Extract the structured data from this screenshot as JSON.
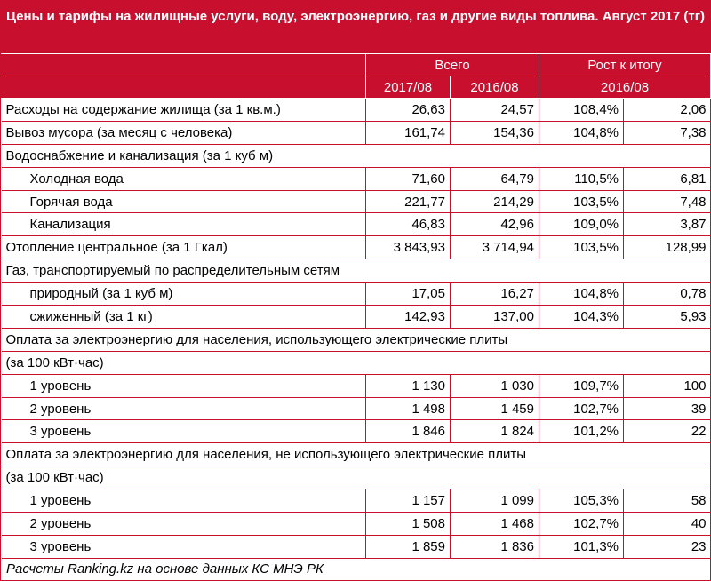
{
  "header": {
    "title": "Цены и тарифы на жилищные услуги, воду, электроэнергию, газ и другие виды топлива. Август 2017 (тг)"
  },
  "table": {
    "group_headers": [
      "Всего",
      "Рост к итогу"
    ],
    "column_headers": [
      "2017/08",
      "2016/08",
      "2016/08"
    ],
    "rows": [
      {
        "cells": [
          "Расходы на содержание жилища (за 1 кв.м.)",
          "26,63",
          "24,57",
          "108,4%",
          "2,06"
        ]
      },
      {
        "cells": [
          "Вывоз мусора (за месяц с человека)",
          "161,74",
          "154,36",
          "104,8%",
          "7,38"
        ]
      },
      {
        "cells": [
          "Водоснабжение и канализация (за 1 куб м)"
        ]
      },
      {
        "cells": [
          "Холодная вода",
          "71,60",
          "64,79",
          "110,5%",
          "6,81"
        ],
        "indent": true
      },
      {
        "cells": [
          "Горячая вода",
          "221,77",
          "214,29",
          "103,5%",
          "7,48"
        ],
        "indent": true
      },
      {
        "cells": [
          "Канализация",
          "46,83",
          "42,96",
          "109,0%",
          "3,87"
        ],
        "indent": true
      },
      {
        "cells": [
          "Отопление центральное (за 1 Гкал)",
          "3 843,93",
          "3 714,94",
          "103,5%",
          "128,99"
        ]
      },
      {
        "cells": [
          "Газ, транспортируемый по распределительным сетям"
        ]
      },
      {
        "cells": [
          "природный (за 1 куб м)",
          "17,05",
          "16,27",
          "104,8%",
          "0,78"
        ],
        "indent": true
      },
      {
        "cells": [
          "сжиженный (за 1 кг)",
          "142,93",
          "137,00",
          "104,3%",
          "5,93"
        ],
        "indent": true
      },
      {
        "cells": [
          "Оплата за электроэнергию для населения, использующего электрические плиты"
        ]
      },
      {
        "cells": [
          "(за 100 кВт·час)"
        ]
      },
      {
        "cells": [
          "1 уровень",
          "1 130",
          "1 030",
          "109,7%",
          "100"
        ],
        "indent": true
      },
      {
        "cells": [
          "2 уровень",
          "1 498",
          "1 459",
          "102,7%",
          "39"
        ],
        "indent": true
      },
      {
        "cells": [
          "3 уровень",
          "1 846",
          "1 824",
          "101,2%",
          "22"
        ],
        "indent": true
      },
      {
        "cells": [
          "Оплата за электроэнергию для населения, не использующего электрические плиты"
        ]
      },
      {
        "cells": [
          "(за 100 кВт·час)"
        ]
      },
      {
        "cells": [
          "1 уровень",
          "1 157",
          "1 099",
          "105,3%",
          "58"
        ],
        "indent": true
      },
      {
        "cells": [
          "2 уровень",
          "1 508",
          "1 468",
          "102,7%",
          "40"
        ],
        "indent": true
      },
      {
        "cells": [
          "3 уровень",
          "1 859",
          "1 836",
          "101,3%",
          "23"
        ],
        "indent": true
      }
    ]
  },
  "footer": {
    "note": "Расчеты Ranking.kz на основе данных КС МНЭ РК"
  }
}
